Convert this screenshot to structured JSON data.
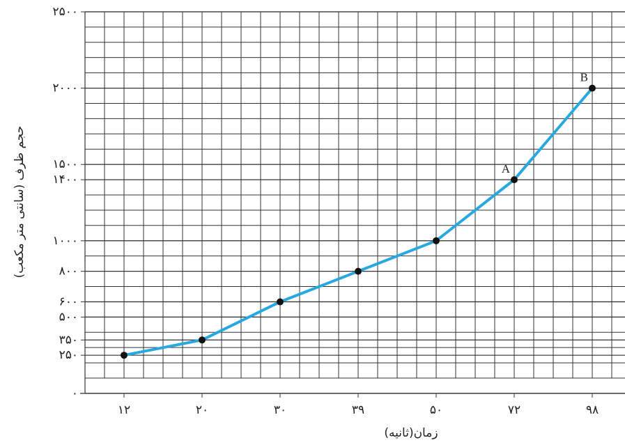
{
  "chart_data": {
    "type": "line",
    "x_label": "زمان(ثانیه)",
    "y_label": "حجم ظرف (سانتی متر مکعب)",
    "categories": [
      "۱۲",
      "۲۰",
      "۳۰",
      "۳۹",
      "۵۰",
      "۷۲",
      "۹۸"
    ],
    "series": [
      {
        "name": null,
        "color": "#29a8e0",
        "values": [
          250,
          350,
          600,
          800,
          1000,
          1400,
          2000
        ]
      }
    ],
    "point_labels": [
      null,
      null,
      null,
      null,
      null,
      "A",
      "B"
    ],
    "ylim": [
      0,
      2500
    ],
    "yticks": [
      {
        "value": 0,
        "label": "۰"
      },
      {
        "value": 250,
        "label": "۲۵۰"
      },
      {
        "value": 350,
        "label": "۳۵۰"
      },
      {
        "value": 500,
        "label": "۵۰۰"
      },
      {
        "value": 600,
        "label": "۶۰۰"
      },
      {
        "value": 800,
        "label": "۸۰۰"
      },
      {
        "value": 1000,
        "label": "۱۰۰۰"
      },
      {
        "value": 1400,
        "label": "۱۴۰۰"
      },
      {
        "value": 1500,
        "label": "۱۵۰۰"
      },
      {
        "value": 2000,
        "label": "۲۰۰۰"
      },
      {
        "value": 2500,
        "label": "۲۵۰۰"
      }
    ],
    "grid": true
  }
}
